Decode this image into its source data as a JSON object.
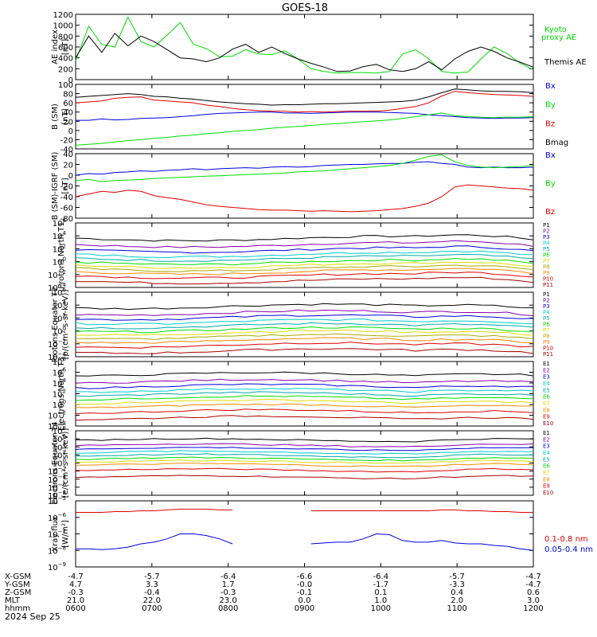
{
  "title": "GOES-18",
  "colors": {
    "black": "#000000",
    "green": "#00dd00",
    "blue": "#0000dd",
    "red": "#dd0000",
    "purple": "#8800aa",
    "violet": "#aa00ff",
    "cyan": "#00cccc",
    "teal": "#00aaaa",
    "yellow": "#dddd00",
    "orange": "#ff8800",
    "olive": "#aaaa00",
    "darkred": "#aa0000"
  },
  "x_ticks": [
    "0600",
    "0700",
    "0800",
    "0900",
    "1000",
    "1100",
    "1200"
  ],
  "chart_data": [
    {
      "type": "line",
      "panel": "ae",
      "ylabel": "AE index [nT]",
      "ylim": [
        0,
        1200
      ],
      "yticks": [
        0,
        200,
        400,
        600,
        800,
        1000,
        1200
      ],
      "legend": [
        "Kyoto proxy AE",
        "Themis AE"
      ],
      "series": [
        {
          "name": "Kyoto proxy AE",
          "color": "green",
          "values": [
            350,
            980,
            650,
            600,
            1150,
            700,
            600,
            820,
            1050,
            650,
            570,
            420,
            430,
            550,
            470,
            460,
            530,
            380,
            200,
            150,
            120,
            130,
            130,
            120,
            150,
            470,
            550,
            380,
            150,
            120,
            140,
            380,
            600,
            480,
            300,
            180
          ]
        },
        {
          "name": "Themis AE",
          "color": "black",
          "values": [
            400,
            800,
            500,
            850,
            620,
            800,
            700,
            550,
            400,
            380,
            330,
            400,
            560,
            650,
            500,
            600,
            480,
            380,
            300,
            230,
            150,
            160,
            240,
            280,
            180,
            150,
            200,
            330,
            180,
            380,
            520,
            600,
            520,
            400,
            320,
            230
          ]
        }
      ]
    },
    {
      "type": "line",
      "panel": "bsm",
      "ylabel": "B (SM) [nT]",
      "ylim": [
        -40,
        100
      ],
      "yticks": [
        -40,
        -20,
        0,
        20,
        40,
        60,
        80,
        100
      ],
      "legend": [
        "Bx",
        "By",
        "Bz",
        "Bmag"
      ],
      "series": [
        {
          "name": "Bx",
          "color": "blue",
          "values": [
            22,
            22,
            25,
            23,
            24,
            26,
            27,
            28,
            30,
            32,
            35,
            37,
            38,
            39,
            40,
            40,
            38,
            38,
            37,
            38,
            39,
            40,
            40,
            40,
            39,
            38,
            37,
            34,
            32,
            30,
            28,
            27,
            26,
            27,
            27,
            28
          ]
        },
        {
          "name": "By",
          "color": "green",
          "values": [
            -32,
            -30,
            -28,
            -25,
            -22,
            -20,
            -17,
            -15,
            -12,
            -10,
            -7,
            -5,
            -2,
            0,
            2,
            5,
            7,
            9,
            11,
            13,
            15,
            17,
            19,
            21,
            23,
            26,
            30,
            34,
            38,
            32,
            30,
            29,
            28,
            29,
            29,
            30
          ]
        },
        {
          "name": "Bz",
          "color": "red",
          "values": [
            60,
            62,
            64,
            70,
            72,
            73,
            66,
            64,
            62,
            60,
            55,
            52,
            48,
            45,
            43,
            42,
            42,
            40,
            41,
            40,
            41,
            42,
            42,
            42,
            44,
            48,
            52,
            60,
            75,
            85,
            82,
            80,
            78,
            77,
            76,
            74
          ]
        },
        {
          "name": "Bmag",
          "color": "black",
          "values": [
            72,
            74,
            76,
            78,
            80,
            78,
            74,
            73,
            70,
            68,
            65,
            62,
            60,
            58,
            57,
            55,
            56,
            56,
            57,
            58,
            58,
            59,
            60,
            61,
            62,
            63,
            66,
            73,
            82,
            90,
            88,
            86,
            85,
            85,
            84,
            82
          ]
        }
      ]
    },
    {
      "type": "line",
      "panel": "bigrf",
      "ylabel": "B (SM)-IGRF (SM) [nT]",
      "ylim": [
        -80,
        40
      ],
      "yticks": [
        -80,
        -60,
        -40,
        -20,
        0,
        20,
        40
      ],
      "legend": [
        "Bx",
        "By",
        "Bz"
      ],
      "series": [
        {
          "name": "Bx",
          "color": "blue",
          "values": [
            0,
            3,
            2,
            5,
            6,
            8,
            7,
            9,
            10,
            12,
            10,
            12,
            13,
            14,
            13,
            15,
            16,
            15,
            16,
            18,
            19,
            20,
            20,
            21,
            22,
            22,
            24,
            25,
            22,
            20,
            15,
            14,
            15,
            14,
            14,
            15
          ]
        },
        {
          "name": "By",
          "color": "green",
          "values": [
            -10,
            -8,
            -12,
            -10,
            -9,
            -8,
            -6,
            -5,
            -4,
            -3,
            -2,
            -1,
            0,
            1,
            2,
            3,
            4,
            6,
            7,
            8,
            10,
            12,
            14,
            16,
            18,
            22,
            28,
            35,
            38,
            25,
            18,
            15,
            14,
            15,
            16,
            18
          ]
        },
        {
          "name": "Bz",
          "color": "red",
          "values": [
            -40,
            -35,
            -30,
            -32,
            -28,
            -30,
            -38,
            -42,
            -45,
            -50,
            -55,
            -58,
            -60,
            -62,
            -64,
            -65,
            -65,
            -66,
            -67,
            -66,
            -67,
            -68,
            -67,
            -66,
            -64,
            -62,
            -58,
            -52,
            -40,
            -22,
            -18,
            -20,
            -22,
            -24,
            -25,
            -28
          ]
        }
      ]
    },
    {
      "type": "line",
      "panel": "p_north",
      "ylabel": "Protons North T1",
      "yscale": "log",
      "ylim": [
        -4,
        6
      ],
      "yticks": [
        -4,
        -2,
        0,
        2,
        4,
        6
      ],
      "legend": [
        "P1",
        "P2",
        "P3",
        "P4",
        "P5",
        "P6",
        "P7",
        "P8",
        "P9",
        "P10",
        "P11"
      ],
      "series": [
        {
          "name": "P1",
          "color": "black",
          "level": 3.6
        },
        {
          "name": "P2",
          "color": "purple",
          "level": 2.6
        },
        {
          "name": "P3",
          "color": "blue",
          "level": 1.8
        },
        {
          "name": "P4",
          "color": "cyan",
          "level": 1.1
        },
        {
          "name": "P5",
          "color": "teal",
          "level": 0.5
        },
        {
          "name": "P6",
          "color": "green",
          "level": -0.1
        },
        {
          "name": "P7",
          "color": "yellow",
          "level": -0.6
        },
        {
          "name": "P8",
          "color": "olive",
          "level": -1.1
        },
        {
          "name": "P9",
          "color": "orange",
          "level": -1.6
        },
        {
          "name": "P10",
          "color": "red",
          "level": -2.2
        },
        {
          "name": "P11",
          "color": "darkred",
          "level": -3.0
        }
      ]
    },
    {
      "type": "line",
      "panel": "p_equator",
      "ylabel": "Protons Equator T2 [p/(cm²-s-sr-keV)]",
      "yscale": "log",
      "ylim": [
        -4,
        6
      ],
      "yticks": [
        -4,
        -2,
        0,
        2,
        4,
        6
      ],
      "legend": [
        "P1",
        "P2",
        "P3",
        "P4",
        "P5",
        "P6",
        "P7",
        "P8",
        "P9",
        "P10",
        "P11"
      ],
      "series": [
        {
          "name": "P1",
          "color": "black",
          "level": 3.8
        },
        {
          "name": "P2",
          "color": "purple",
          "level": 2.8
        },
        {
          "name": "P3",
          "color": "blue",
          "level": 2.1
        },
        {
          "name": "P4",
          "color": "cyan",
          "level": 1.4
        },
        {
          "name": "P5",
          "color": "teal",
          "level": 0.8
        },
        {
          "name": "P6",
          "color": "green",
          "level": 0.2
        },
        {
          "name": "P7",
          "color": "yellow",
          "level": -0.3
        },
        {
          "name": "P8",
          "color": "olive",
          "level": -0.9
        },
        {
          "name": "P9",
          "color": "orange",
          "level": -1.5
        },
        {
          "name": "P10",
          "color": "red",
          "level": -2.2
        },
        {
          "name": "P11",
          "color": "darkred",
          "level": -3.1
        }
      ]
    },
    {
      "type": "line",
      "panel": "e_north",
      "ylabel": "Electrons North T3",
      "yscale": "log",
      "ylim": [
        -4,
        8
      ],
      "yticks": [
        -4,
        -2,
        0,
        2,
        4,
        6,
        8
      ],
      "legend": [
        "E1",
        "E2",
        "E3",
        "E4",
        "E5",
        "E6",
        "E7",
        "E8",
        "E9",
        "E10"
      ],
      "series": [
        {
          "name": "E1",
          "color": "black",
          "level": 5.6
        },
        {
          "name": "E2",
          "color": "purple",
          "level": 4.3
        },
        {
          "name": "E3",
          "color": "blue",
          "level": 3.4
        },
        {
          "name": "E4",
          "color": "cyan",
          "level": 2.6
        },
        {
          "name": "E5",
          "color": "teal",
          "level": 1.9
        },
        {
          "name": "E6",
          "color": "green",
          "level": 1.2
        },
        {
          "name": "E7",
          "color": "yellow",
          "level": 0.5
        },
        {
          "name": "E8",
          "color": "orange",
          "level": -0.3
        },
        {
          "name": "E9",
          "color": "red",
          "level": -1.3
        },
        {
          "name": "E10",
          "color": "darkred",
          "level": -2.5
        }
      ]
    },
    {
      "type": "line",
      "panel": "e_equator",
      "ylabel": "Electrons Equator T4 [e/(cm²-s-sr-keV)]",
      "yscale": "log",
      "ylim": [
        -8,
        8
      ],
      "yticks": [
        -8,
        -6,
        -4,
        -2,
        0,
        2,
        4,
        6,
        8
      ],
      "legend": [
        "E1",
        "E2",
        "E3",
        "E4",
        "E5",
        "E6",
        "E7",
        "E8",
        "E9",
        "E10"
      ],
      "series": [
        {
          "name": "E1",
          "color": "black",
          "level": 5.7
        },
        {
          "name": "E2",
          "color": "purple",
          "level": 4.4
        },
        {
          "name": "E3",
          "color": "blue",
          "level": 3.5
        },
        {
          "name": "E4",
          "color": "cyan",
          "level": 2.6
        },
        {
          "name": "E5",
          "color": "teal",
          "level": 1.8
        },
        {
          "name": "E6",
          "color": "green",
          "level": 1.0
        },
        {
          "name": "E7",
          "color": "yellow",
          "level": 0.3
        },
        {
          "name": "E8",
          "color": "orange",
          "level": -0.5
        },
        {
          "name": "E9",
          "color": "red",
          "level": -1.8
        },
        {
          "name": "E10",
          "color": "darkred",
          "level": -3.5
        }
      ]
    },
    {
      "type": "line",
      "panel": "xray",
      "ylabel": "Xray flux [W/m²]",
      "yscale": "log",
      "ylim": [
        -9,
        -5
      ],
      "yticks": [
        -9,
        -8,
        -7,
        -6,
        -5
      ],
      "legend": [
        "0.1-0.8 nm",
        "0.05-0.4 nm"
      ],
      "series": [
        {
          "name": "0.1-0.8 nm",
          "color": "red",
          "values": [
            -5.7,
            -5.7,
            -5.7,
            -5.65,
            -5.65,
            -5.6,
            -5.6,
            -5.55,
            -5.5,
            -5.5,
            -5.5,
            -5.55,
            -5.55,
            null,
            null,
            null,
            null,
            null,
            -5.6,
            -5.6,
            -5.6,
            -5.6,
            -5.6,
            -5.6,
            -5.6,
            -5.6,
            -5.6,
            -5.6,
            -5.55,
            -5.55,
            -5.6,
            -5.6,
            -5.65,
            -5.65,
            -5.7,
            -5.7
          ]
        },
        {
          "name": "0.05-0.4 nm",
          "color": "blue",
          "values": [
            -7.9,
            -7.9,
            -7.95,
            -7.9,
            -7.8,
            -7.6,
            -7.5,
            -7.3,
            -7.0,
            -7.0,
            -7.1,
            -7.3,
            -7.6,
            null,
            null,
            null,
            null,
            null,
            -7.6,
            -7.55,
            -7.5,
            -7.5,
            -7.3,
            -7.0,
            -7.05,
            -7.4,
            -7.5,
            -7.5,
            -7.4,
            -7.55,
            -7.6,
            -7.6,
            -7.7,
            -7.75,
            -7.9,
            -8.0
          ]
        }
      ]
    }
  ],
  "ephemeris": {
    "labels": [
      "X-GSM",
      "Y-GSM",
      "Z-GSM",
      "MLT",
      "hhmm"
    ],
    "rows": [
      [
        "-4.7",
        "-5.7",
        "-6.4",
        "-6.6",
        "-6.4",
        "-5.7",
        "-4.7"
      ],
      [
        "4.7",
        "3.3",
        "1.7",
        "-0.0",
        "-1.7",
        "-3.3",
        "-4.7"
      ],
      [
        "-0.3",
        "-0.4",
        "-0.3",
        "-0.1",
        "0.1",
        "0.4",
        "0.6"
      ],
      [
        "21.0",
        "22.0",
        "23.0",
        "0.0",
        "1.0",
        "2.0",
        "3.0"
      ],
      [
        "0600",
        "0700",
        "0800",
        "0900",
        "1000",
        "1100",
        "1200"
      ]
    ],
    "date": "2024 Sep 25"
  },
  "legend_labels": {
    "ae": [
      "Kyoto",
      "proxy AE",
      "Themis AE"
    ],
    "xray": [
      "0.1-0.8 nm",
      "0.05-0.4 nm"
    ]
  }
}
